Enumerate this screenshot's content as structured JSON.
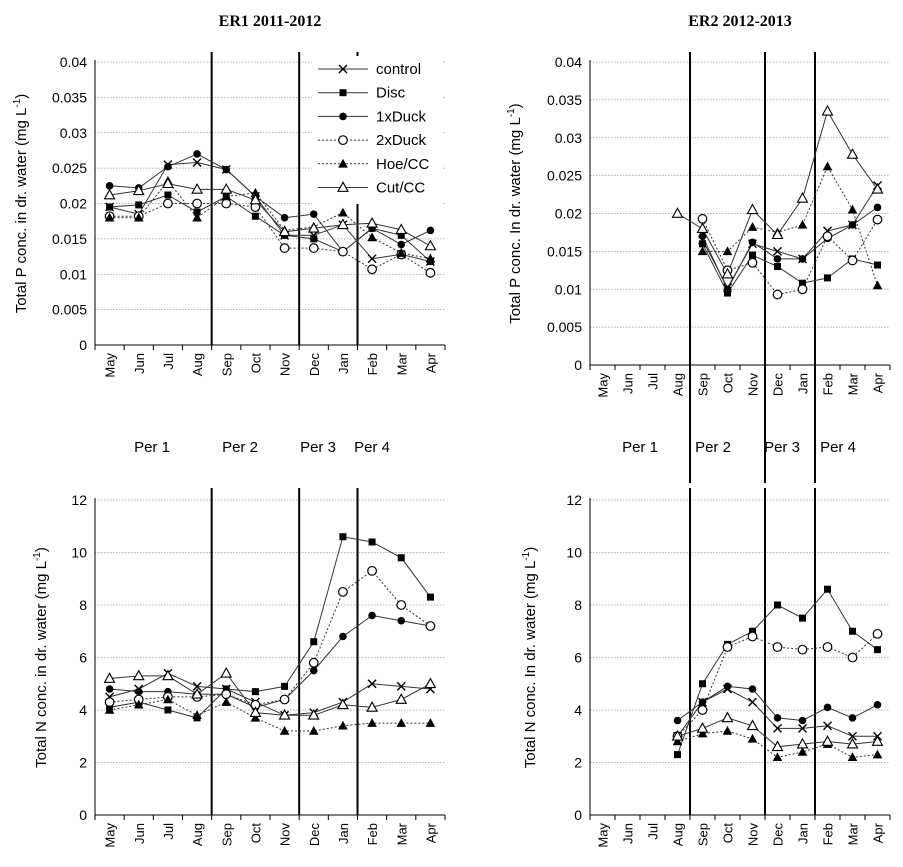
{
  "chart_data": [
    {
      "id": "er1p",
      "type": "line",
      "title": "ER1 2011-2012",
      "ylabel": "Total P conc. in dr. water  (mg L",
      "yunit_sup": "-1",
      "ylabel_close": ")",
      "ylim": [
        0,
        0.04
      ],
      "yticks": [
        "0",
        "0.005",
        "0.01",
        "0.015",
        "0.02",
        "0.025",
        "0.03",
        "0.035",
        "0.04"
      ],
      "categories": [
        "May",
        "Jun",
        "Jul",
        "Aug",
        "Sep",
        "Oct",
        "Nov",
        "Dec",
        "Jan",
        "Feb",
        "Mar",
        "Apr"
      ],
      "grid": true,
      "legend": "top-right",
      "series": [
        {
          "name": "control",
          "values": [
            0.0195,
            0.0185,
            0.0255,
            0.0258,
            0.0248,
            0.021,
            0.0155,
            0.0155,
            0.017,
            0.0122,
            0.0128,
            0.0118
          ]
        },
        {
          "name": "Disc",
          "values": [
            0.0195,
            0.0198,
            0.0212,
            0.0188,
            0.021,
            0.0182,
            0.0155,
            0.015,
            0.0132,
            0.0165,
            0.0155,
            0.0118
          ]
        },
        {
          "name": "1xDuck",
          "values": [
            0.0225,
            0.0222,
            0.0252,
            0.027,
            0.0248,
            0.021,
            0.018,
            0.0185,
            0.0132,
            0.0165,
            0.0142,
            0.0162
          ]
        },
        {
          "name": "2xDuck",
          "values": [
            0.0182,
            0.0182,
            0.02,
            0.02,
            0.02,
            0.0195,
            0.0137,
            0.0137,
            0.0132,
            0.0107,
            0.0128,
            0.0102
          ]
        },
        {
          "name": "Hoe/CC",
          "values": [
            0.018,
            0.018,
            0.0232,
            0.018,
            0.021,
            0.0215,
            0.0162,
            0.0167,
            0.0187,
            0.0152,
            0.013,
            0.0122
          ]
        },
        {
          "name": "Cut/CC",
          "values": [
            0.0212,
            0.0218,
            0.0228,
            0.022,
            0.022,
            0.0205,
            0.016,
            0.0165,
            0.017,
            0.0172,
            0.0163,
            0.014
          ]
        }
      ],
      "period_dividers_after": [
        3,
        6,
        8
      ]
    },
    {
      "id": "er2p",
      "type": "line",
      "title": "ER2 2012-2013",
      "ylabel": "Total P conc. In dr. water (mg L",
      "yunit_sup": "-1",
      "ylabel_close": ")",
      "ylim": [
        0,
        0.04
      ],
      "yticks": [
        "0",
        "0.005",
        "0.01",
        "0.015",
        "0.02",
        "0.025",
        "0.03",
        "0.035",
        "0.04"
      ],
      "categories": [
        "May",
        "Jun",
        "Jul",
        "Aug",
        "Sep",
        "Oct",
        "Nov",
        "Dec",
        "Jan",
        "Feb",
        "Mar",
        "Apr"
      ],
      "grid": true,
      "series": [
        {
          "name": "control",
          "values": [
            null,
            null,
            null,
            null,
            0.0165,
            0.0102,
            0.016,
            0.015,
            0.014,
            0.0177,
            0.0185,
            0.0237
          ]
        },
        {
          "name": "Disc",
          "values": [
            null,
            null,
            null,
            null,
            0.016,
            0.0095,
            0.0145,
            0.013,
            0.0108,
            0.0115,
            0.014,
            0.0132
          ]
        },
        {
          "name": "1xDuck",
          "values": [
            null,
            null,
            null,
            null,
            0.017,
            0.01,
            0.0162,
            0.014,
            0.014,
            0.0167,
            0.0185,
            0.0208
          ]
        },
        {
          "name": "2xDuck",
          "values": [
            null,
            null,
            null,
            null,
            0.0193,
            0.0125,
            0.0135,
            0.0093,
            0.01,
            0.017,
            0.0138,
            0.0192
          ]
        },
        {
          "name": "Hoe/CC",
          "values": [
            null,
            null,
            null,
            null,
            0.015,
            0.015,
            0.0182,
            0.0175,
            0.0185,
            0.0262,
            0.0205,
            0.0105
          ]
        },
        {
          "name": "Cut/CC",
          "values": [
            null,
            null,
            null,
            0.02,
            0.018,
            0.012,
            0.0205,
            0.0172,
            0.022,
            0.0335,
            0.0278,
            0.0232
          ]
        }
      ],
      "period_dividers_after": [
        3,
        6,
        8
      ]
    },
    {
      "id": "er1n",
      "type": "line",
      "ylabel": "Total N conc. in  dr. water (mg L",
      "yunit_sup": "-1",
      "ylabel_close": ")",
      "ylim": [
        0,
        12
      ],
      "yticks": [
        "0",
        "2",
        "4",
        "6",
        "8",
        "10",
        "12"
      ],
      "categories": [
        "May",
        "Jun",
        "Jul",
        "Aug",
        "Sep",
        "Oct",
        "Nov",
        "Dec",
        "Jan",
        "Feb",
        "Mar",
        "Apr"
      ],
      "grid": true,
      "series": [
        {
          "name": "control",
          "values": [
            4.5,
            4.8,
            5.4,
            4.9,
            4.8,
            4.3,
            3.8,
            3.9,
            4.3,
            5.0,
            4.9,
            4.8
          ]
        },
        {
          "name": "Disc",
          "values": [
            4.1,
            4.3,
            4.0,
            3.7,
            4.8,
            4.7,
            4.9,
            6.6,
            10.6,
            10.4,
            9.8,
            8.3
          ]
        },
        {
          "name": "1xDuck",
          "values": [
            4.8,
            4.7,
            4.7,
            4.6,
            4.6,
            4.1,
            4.4,
            5.5,
            6.8,
            7.6,
            7.4,
            7.2
          ]
        },
        {
          "name": "2xDuck",
          "values": [
            4.3,
            4.4,
            4.5,
            4.5,
            4.6,
            4.2,
            4.4,
            5.8,
            8.5,
            9.3,
            8.0,
            7.2
          ]
        },
        {
          "name": "Hoe/CC",
          "values": [
            4.0,
            4.2,
            4.4,
            3.8,
            4.3,
            3.7,
            3.2,
            3.2,
            3.4,
            3.5,
            3.5,
            3.5
          ]
        },
        {
          "name": "Cut/CC",
          "values": [
            5.2,
            5.3,
            5.3,
            4.6,
            5.4,
            3.9,
            3.8,
            3.8,
            4.2,
            4.1,
            4.4,
            5.0
          ]
        }
      ],
      "period_dividers_after": [
        3,
        6,
        8
      ]
    },
    {
      "id": "er2n",
      "type": "line",
      "ylabel": "Total N conc. In dr. water (mg L",
      "yunit_sup": "-1",
      "ylabel_close": ")",
      "ylim": [
        0,
        12
      ],
      "yticks": [
        "0",
        "2",
        "4",
        "6",
        "8",
        "10",
        "12"
      ],
      "categories": [
        "May",
        "Jun",
        "Jul",
        "Aug",
        "Sep",
        "Oct",
        "Nov",
        "Dec",
        "Jan",
        "Feb",
        "Mar",
        "Apr"
      ],
      "grid": true,
      "series": [
        {
          "name": "control",
          "values": [
            null,
            null,
            null,
            3.0,
            4.3,
            4.8,
            4.3,
            3.3,
            3.3,
            3.4,
            3.0,
            3.0
          ]
        },
        {
          "name": "Disc",
          "values": [
            null,
            null,
            null,
            2.3,
            5.0,
            6.5,
            7.0,
            8.0,
            7.5,
            8.6,
            7.0,
            6.3
          ]
        },
        {
          "name": "1xDuck",
          "values": [
            null,
            null,
            null,
            3.6,
            4.3,
            4.9,
            4.8,
            3.7,
            3.6,
            4.1,
            3.7,
            4.2
          ]
        },
        {
          "name": "2xDuck",
          "values": [
            null,
            null,
            null,
            3.0,
            4.0,
            6.4,
            6.8,
            6.4,
            6.3,
            6.4,
            6.0,
            6.9
          ]
        },
        {
          "name": "Hoe/CC",
          "values": [
            null,
            null,
            null,
            2.8,
            3.1,
            3.2,
            2.9,
            2.2,
            2.4,
            2.7,
            2.2,
            2.3
          ]
        },
        {
          "name": "Cut/CC",
          "values": [
            null,
            null,
            null,
            3.0,
            3.3,
            3.7,
            3.4,
            2.6,
            2.7,
            2.8,
            2.7,
            2.8
          ]
        }
      ],
      "period_dividers_after": [
        3,
        6,
        8
      ]
    }
  ],
  "periods": [
    "Per 1",
    "Per 2",
    "Per 3",
    "Per 4"
  ],
  "legend": {
    "entries": [
      {
        "name": "control",
        "marker": "x"
      },
      {
        "name": "Disc",
        "marker": "square"
      },
      {
        "name": "1xDuck",
        "marker": "circle"
      },
      {
        "name": "2xDuck",
        "marker": "circle-open"
      },
      {
        "name": "Hoe/CC",
        "marker": "triangle"
      },
      {
        "name": "Cut/CC",
        "marker": "triangle-open"
      }
    ]
  },
  "colors": {
    "line": "#333333",
    "marker": "#000000",
    "grid": "#9a9a9a"
  }
}
